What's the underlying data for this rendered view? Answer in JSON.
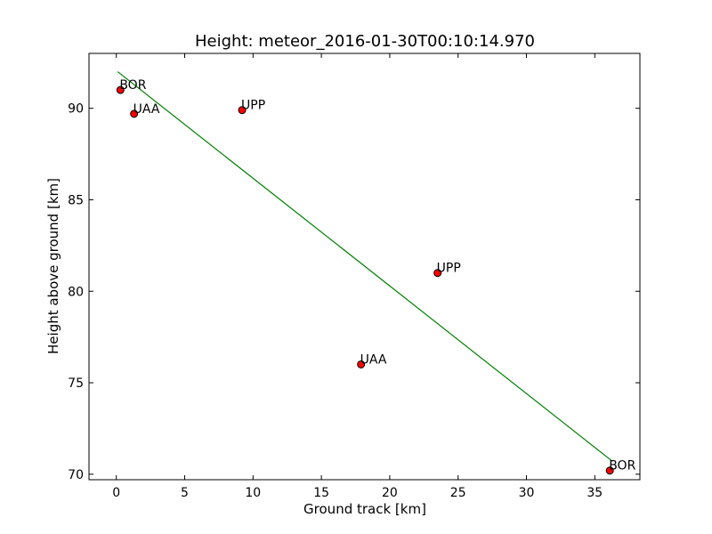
{
  "chart_data": {
    "type": "scatter",
    "title": "Height: meteor_2016-01-30T00:10:14.970",
    "xlabel": "Ground track [km]",
    "ylabel": "Height above ground [km]",
    "xlim": [
      -2,
      38.3
    ],
    "ylim": [
      69.7,
      93.0
    ],
    "xticks": [
      0,
      5,
      10,
      15,
      20,
      25,
      30,
      35
    ],
    "yticks": [
      70,
      75,
      80,
      85,
      90
    ],
    "grid": false,
    "series": [
      {
        "type": "scatter",
        "color": "#ff0000",
        "points": [
          {
            "x": 0.3,
            "y": 91.0,
            "label": "BOR"
          },
          {
            "x": 1.3,
            "y": 89.7,
            "label": "UAA"
          },
          {
            "x": 9.2,
            "y": 89.9,
            "label": "UPP"
          },
          {
            "x": 23.5,
            "y": 81.0,
            "label": "UPP"
          },
          {
            "x": 17.9,
            "y": 76.0,
            "label": "UAA"
          },
          {
            "x": 36.1,
            "y": 70.2,
            "label": "BOR"
          }
        ]
      },
      {
        "type": "line",
        "color": "#008000",
        "points": [
          {
            "x": 0.1,
            "y": 92.0
          },
          {
            "x": 36.3,
            "y": 70.7
          }
        ]
      }
    ]
  }
}
